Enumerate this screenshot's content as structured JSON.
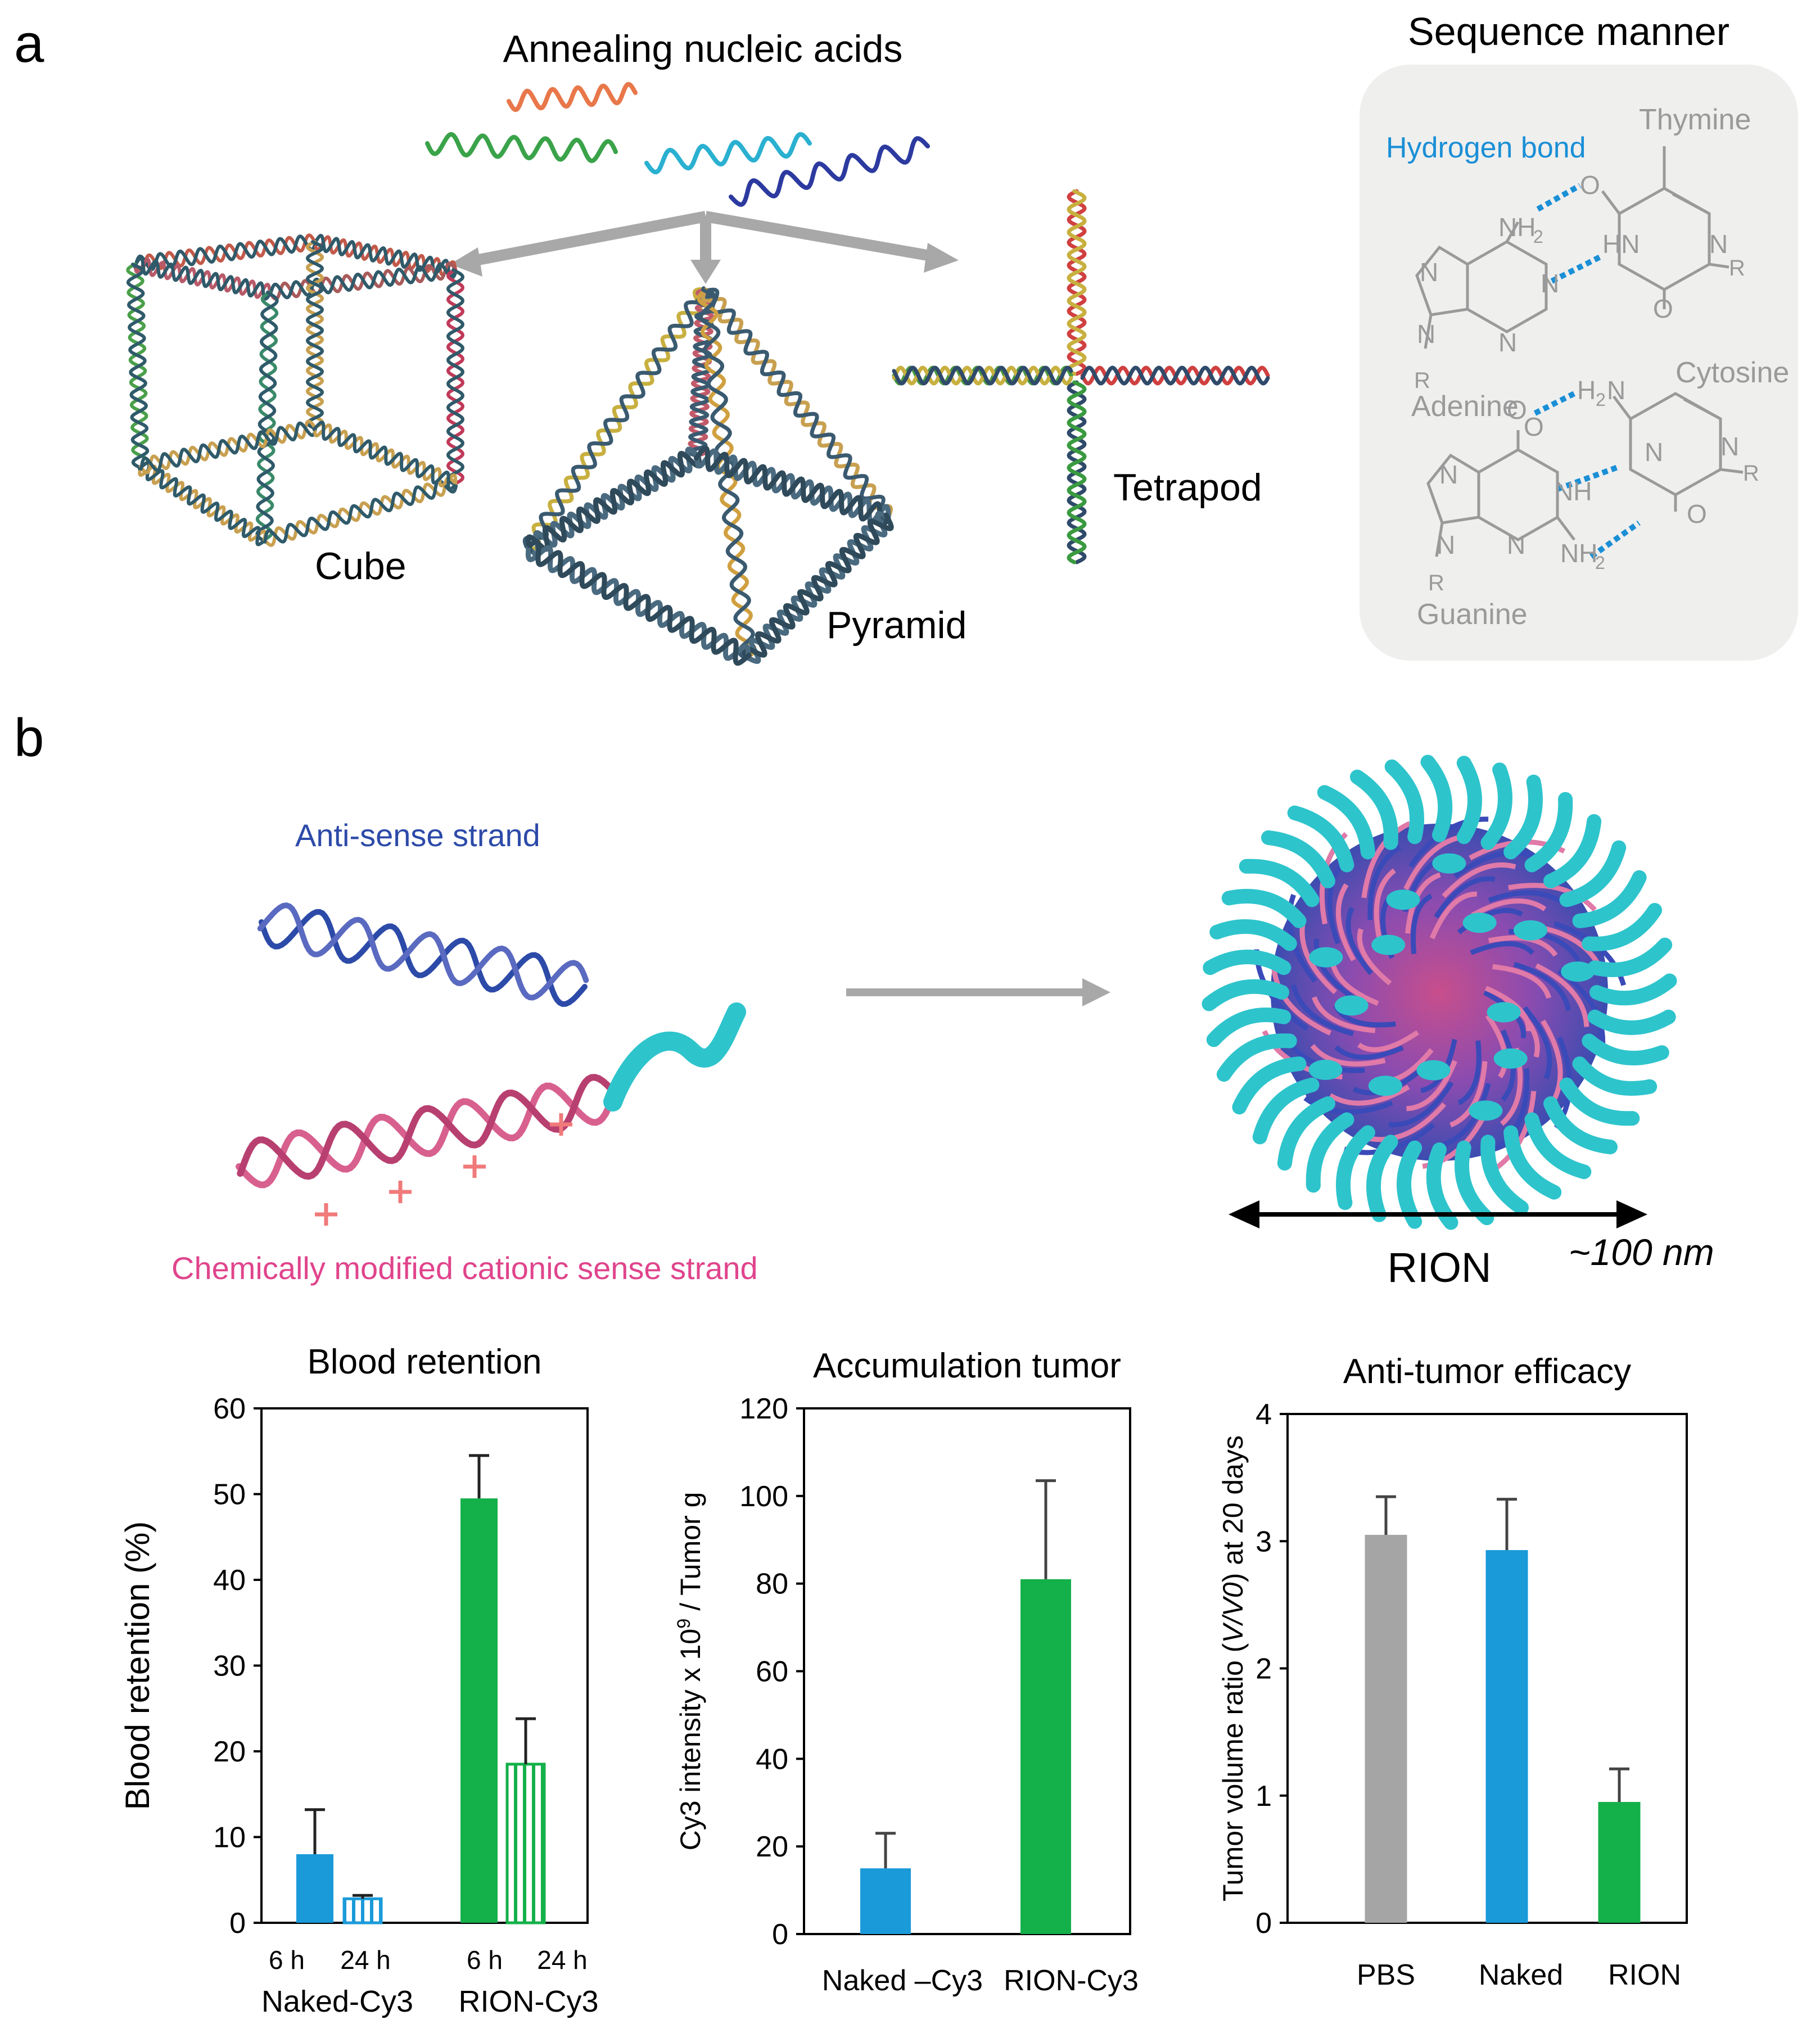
{
  "panel_a": {
    "label": "a",
    "annealing_title": "Annealing nucleic acids",
    "structures": {
      "cube": "Cube",
      "pyramid": "Pyramid",
      "tetrapod": "Tetrapod"
    },
    "sequence": {
      "title": "Sequence manner",
      "hydrogen_bond": "Hydrogen bond",
      "thymine": "Thymine",
      "adenine": "Adenine",
      "cytosine": "Cytosine",
      "guanine": "Guanine",
      "atoms": {
        "O": "O",
        "N": "N",
        "NH": "NH",
        "HN": "HN",
        "NH2": "NH",
        "H2N": "H",
        "sub2": "2",
        "R": "R",
        "N_label": "N"
      }
    },
    "colors": {
      "hbond": "#1a8fd6",
      "chem": "#9a9a9a",
      "box": "#efefee",
      "arrow": "#a8a8a8"
    }
  },
  "panel_b": {
    "label": "b",
    "antisense": "Anti-sense strand",
    "sense": "Chemically modified cationic sense strand",
    "rion": "RION",
    "size": "~100 nm",
    "colors": {
      "antisense": "#2c4aa8",
      "sense": "#e0448c",
      "peg": "#2ec4cc",
      "plus": "#f07a7a"
    }
  },
  "chart_data": [
    {
      "type": "bar",
      "title": "Blood retention",
      "ylabel": "Blood retention (%)",
      "ylim": [
        0,
        60
      ],
      "yticks": [
        "0",
        "10",
        "20",
        "30",
        "40",
        "50",
        "60"
      ],
      "groups": [
        "Naked-Cy3",
        "RION-Cy3"
      ],
      "categories": [
        "6 h",
        "24 h",
        "6 h",
        "24 h"
      ],
      "values": [
        8,
        2.8,
        49.5,
        18.5
      ],
      "errors": [
        5.2,
        0.4,
        5,
        5.3
      ],
      "fill": [
        "solid",
        "hatched",
        "solid",
        "hatched"
      ],
      "colors": [
        "#1a9ad9",
        "#1a9ad9",
        "#14b04a",
        "#14b04a"
      ]
    },
    {
      "type": "bar",
      "title": "Accumulation tumor",
      "ylabel": "Cy3 intensity x 10",
      "ylabel_sup": "9",
      "ylabel_tail": " / Tumor g",
      "ylim": [
        0,
        120
      ],
      "yticks": [
        "0",
        "20",
        "40",
        "60",
        "80",
        "100",
        "120"
      ],
      "categories": [
        "Naked –Cy3",
        "RION-Cy3"
      ],
      "values": [
        15,
        81
      ],
      "errors": [
        8,
        22.5
      ],
      "colors": [
        "#1a9ad9",
        "#14b04a"
      ]
    },
    {
      "type": "bar",
      "title": "Anti-tumor efficacy",
      "ylabel": "Tumor volume ratio (",
      "ylabel_italic": "V/V0",
      "ylabel_tail": ") at 20 days",
      "ylim": [
        0,
        4
      ],
      "yticks": [
        "0",
        "1",
        "2",
        "3",
        "4"
      ],
      "categories": [
        "PBS",
        "Naked",
        "RION"
      ],
      "values": [
        3.05,
        2.93,
        0.95
      ],
      "errors": [
        0.3,
        0.4,
        0.26
      ],
      "colors": [
        "#a5a5a5",
        "#1a9ad9",
        "#14b04a"
      ]
    }
  ]
}
